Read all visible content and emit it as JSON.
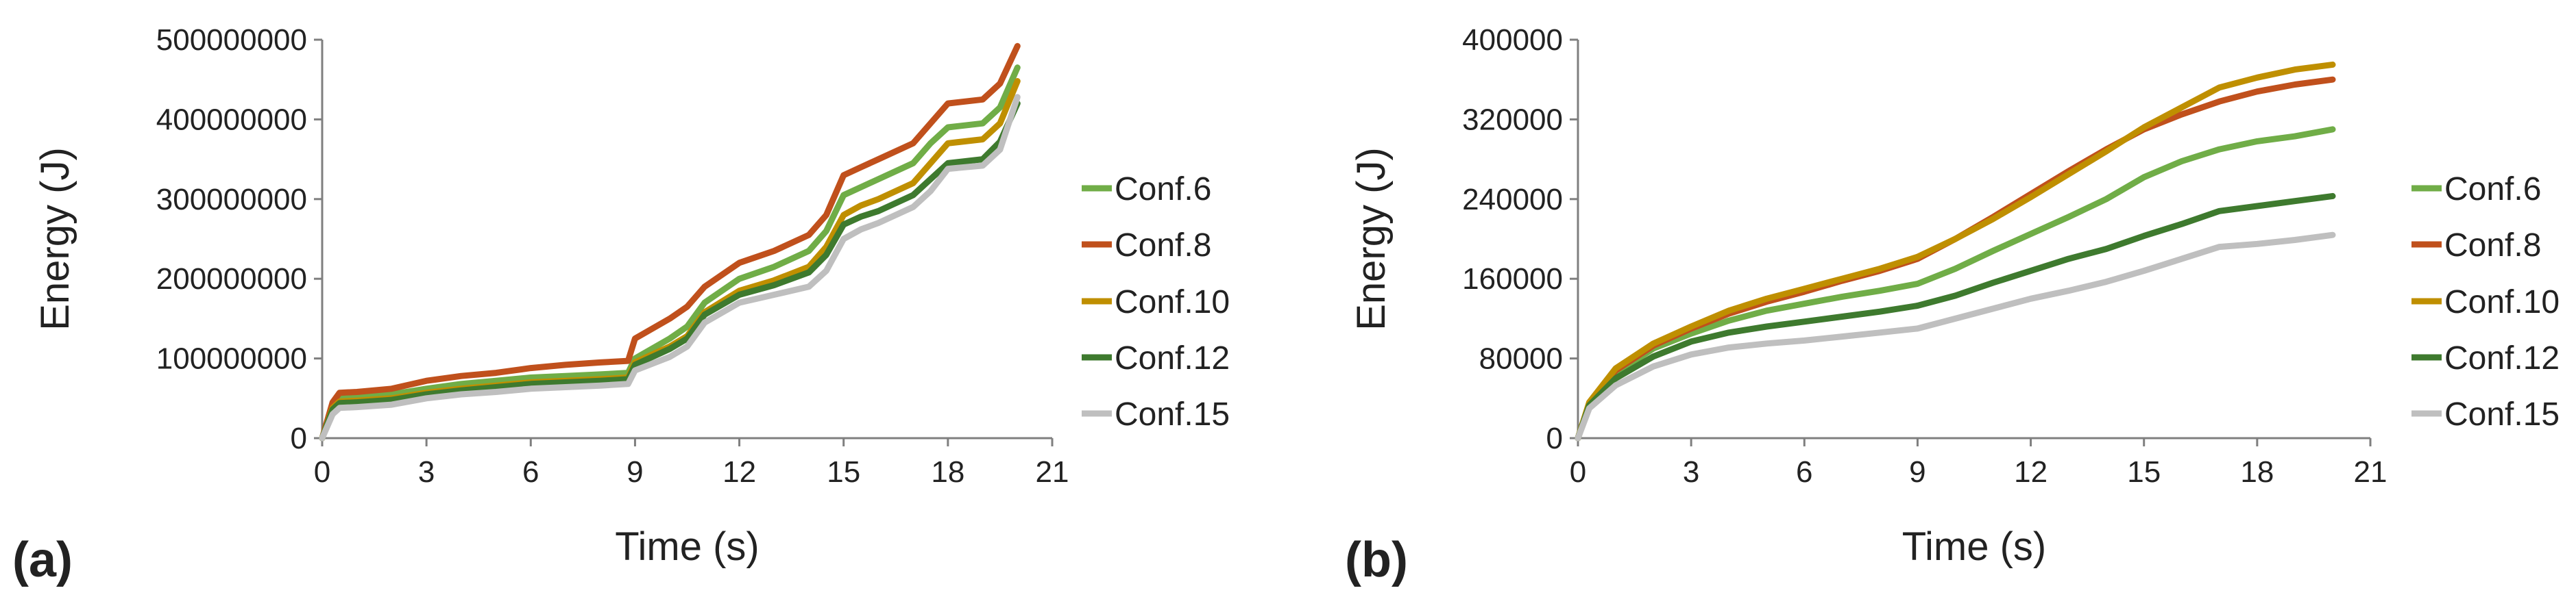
{
  "chart_data": [
    {
      "type": "line",
      "panel_label": "(a)",
      "xlabel": "Time (s)",
      "ylabel": "Energy (J)",
      "xlim": [
        0,
        21
      ],
      "ylim": [
        0,
        500000000
      ],
      "xticks": [
        "0",
        "3",
        "6",
        "9",
        "12",
        "15",
        "18",
        "21"
      ],
      "yticks": [
        "0",
        "100000000",
        "200000000",
        "300000000",
        "400000000",
        "500000000"
      ],
      "grid": false,
      "legend_position": "right",
      "series": [
        {
          "name": "Conf.6",
          "color": "#70AD47",
          "x": [
            0,
            0.3,
            0.5,
            1,
            2,
            3,
            4,
            5,
            6,
            7,
            8,
            8.8,
            9,
            10,
            10.5,
            11,
            12,
            13,
            14,
            14.5,
            15,
            15.5,
            16,
            17,
            17.5,
            18,
            19,
            19.5,
            20
          ],
          "y": [
            0,
            40000000,
            50000000,
            52000000,
            55000000,
            62000000,
            68000000,
            72000000,
            76000000,
            78000000,
            80000000,
            82000000,
            100000000,
            125000000,
            140000000,
            170000000,
            200000000,
            215000000,
            235000000,
            260000000,
            305000000,
            315000000,
            325000000,
            345000000,
            370000000,
            390000000,
            395000000,
            415000000,
            465000000
          ]
        },
        {
          "name": "Conf.8",
          "color": "#C0501C",
          "x": [
            0,
            0.3,
            0.5,
            1,
            2,
            3,
            4,
            5,
            6,
            7,
            8,
            8.8,
            9,
            10,
            10.5,
            11,
            12,
            13,
            14,
            14.5,
            15,
            15.5,
            16,
            17,
            17.5,
            18,
            19,
            19.5,
            20
          ],
          "y": [
            0,
            45000000,
            57000000,
            58000000,
            62000000,
            72000000,
            78000000,
            82000000,
            88000000,
            92000000,
            95000000,
            97000000,
            125000000,
            150000000,
            165000000,
            190000000,
            220000000,
            235000000,
            255000000,
            280000000,
            330000000,
            340000000,
            350000000,
            370000000,
            395000000,
            420000000,
            425000000,
            445000000,
            492000000
          ]
        },
        {
          "name": "Conf.10",
          "color": "#BF8F00",
          "x": [
            0,
            0.3,
            0.5,
            1,
            2,
            3,
            4,
            5,
            6,
            7,
            8,
            8.8,
            9,
            10,
            10.5,
            11,
            12,
            13,
            14,
            14.5,
            15,
            15.5,
            16,
            17,
            17.5,
            18,
            19,
            19.5,
            20
          ],
          "y": [
            0,
            38000000,
            46000000,
            47000000,
            50000000,
            57000000,
            62000000,
            66000000,
            70000000,
            72000000,
            74000000,
            76000000,
            95000000,
            115000000,
            128000000,
            158000000,
            185000000,
            198000000,
            215000000,
            240000000,
            280000000,
            292000000,
            300000000,
            320000000,
            345000000,
            370000000,
            375000000,
            395000000,
            448000000
          ]
        },
        {
          "name": "Conf.12",
          "color": "#3E7A2E",
          "x": [
            0,
            0.3,
            0.5,
            1,
            2,
            3,
            4,
            5,
            6,
            7,
            8,
            8.8,
            9,
            10,
            10.5,
            11,
            12,
            13,
            14,
            14.5,
            15,
            15.5,
            16,
            17,
            17.5,
            18,
            19,
            19.5,
            20
          ],
          "y": [
            0,
            36000000,
            44000000,
            45000000,
            48000000,
            55000000,
            60000000,
            64000000,
            68000000,
            70000000,
            72000000,
            74000000,
            92000000,
            112000000,
            125000000,
            155000000,
            180000000,
            192000000,
            208000000,
            230000000,
            268000000,
            278000000,
            285000000,
            305000000,
            325000000,
            345000000,
            350000000,
            372000000,
            420000000
          ]
        },
        {
          "name": "Conf.15",
          "color": "#BFBFBF",
          "x": [
            0,
            0.3,
            0.5,
            1,
            2,
            3,
            4,
            5,
            6,
            7,
            8,
            8.8,
            9,
            10,
            10.5,
            11,
            12,
            13,
            14,
            14.5,
            15,
            15.5,
            16,
            17,
            17.5,
            18,
            19,
            19.5,
            20
          ],
          "y": [
            0,
            30000000,
            38000000,
            39000000,
            42000000,
            50000000,
            55000000,
            58000000,
            62000000,
            64000000,
            66000000,
            68000000,
            85000000,
            102000000,
            115000000,
            145000000,
            170000000,
            180000000,
            190000000,
            210000000,
            250000000,
            262000000,
            270000000,
            290000000,
            310000000,
            338000000,
            342000000,
            362000000,
            428000000
          ]
        }
      ]
    },
    {
      "type": "line",
      "panel_label": "(b)",
      "xlabel": "Time (s)",
      "ylabel": "Energy (J)",
      "xlim": [
        0,
        21
      ],
      "ylim": [
        0,
        400000
      ],
      "xticks": [
        "0",
        "3",
        "6",
        "9",
        "12",
        "15",
        "18",
        "21"
      ],
      "yticks": [
        "0",
        "80000",
        "160000",
        "240000",
        "320000",
        "400000"
      ],
      "grid": false,
      "legend_position": "right",
      "series": [
        {
          "name": "Conf.6",
          "color": "#70AD47",
          "x": [
            0,
            0.3,
            1,
            2,
            3,
            4,
            5,
            6,
            7,
            8,
            9,
            10,
            11,
            12,
            13,
            14,
            15,
            16,
            17,
            18,
            19,
            20
          ],
          "y": [
            0,
            35000,
            65000,
            90000,
            105000,
            118000,
            128000,
            135000,
            142000,
            148000,
            155000,
            170000,
            188000,
            205000,
            222000,
            240000,
            262000,
            278000,
            290000,
            298000,
            303000,
            310000
          ]
        },
        {
          "name": "Conf.8",
          "color": "#C0501C",
          "x": [
            0,
            0.3,
            1,
            2,
            3,
            4,
            5,
            6,
            7,
            8,
            9,
            10,
            11,
            12,
            13,
            14,
            15,
            16,
            17,
            18,
            19,
            20
          ],
          "y": [
            0,
            35000,
            68000,
            93000,
            110000,
            125000,
            137000,
            147000,
            158000,
            168000,
            180000,
            200000,
            222000,
            245000,
            268000,
            290000,
            310000,
            325000,
            338000,
            348000,
            355000,
            360000
          ]
        },
        {
          "name": "Conf.10",
          "color": "#BF8F00",
          "x": [
            0,
            0.3,
            1,
            2,
            3,
            4,
            5,
            6,
            7,
            8,
            9,
            10,
            11,
            12,
            13,
            14,
            15,
            16,
            17,
            18,
            19,
            20
          ],
          "y": [
            0,
            36000,
            70000,
            95000,
            112000,
            128000,
            140000,
            150000,
            160000,
            170000,
            182000,
            200000,
            220000,
            242000,
            265000,
            288000,
            312000,
            332000,
            352000,
            362000,
            370000,
            375000
          ]
        },
        {
          "name": "Conf.12",
          "color": "#3E7A2E",
          "x": [
            0,
            0.3,
            1,
            2,
            3,
            4,
            5,
            6,
            7,
            8,
            9,
            10,
            11,
            12,
            13,
            14,
            15,
            16,
            17,
            18,
            19,
            20
          ],
          "y": [
            0,
            33000,
            60000,
            82000,
            97000,
            106000,
            112000,
            117000,
            122000,
            127000,
            133000,
            143000,
            156000,
            168000,
            180000,
            190000,
            203000,
            215000,
            228000,
            233000,
            238000,
            243000
          ]
        },
        {
          "name": "Conf.15",
          "color": "#BFBFBF",
          "x": [
            0,
            0.3,
            1,
            2,
            3,
            4,
            5,
            6,
            7,
            8,
            9,
            10,
            11,
            12,
            13,
            14,
            15,
            16,
            17,
            18,
            19,
            20
          ],
          "y": [
            0,
            30000,
            53000,
            72000,
            84000,
            91000,
            95000,
            98000,
            102000,
            106000,
            110000,
            120000,
            130000,
            140000,
            148000,
            157000,
            168000,
            180000,
            192000,
            195000,
            199000,
            204000
          ]
        }
      ]
    }
  ]
}
